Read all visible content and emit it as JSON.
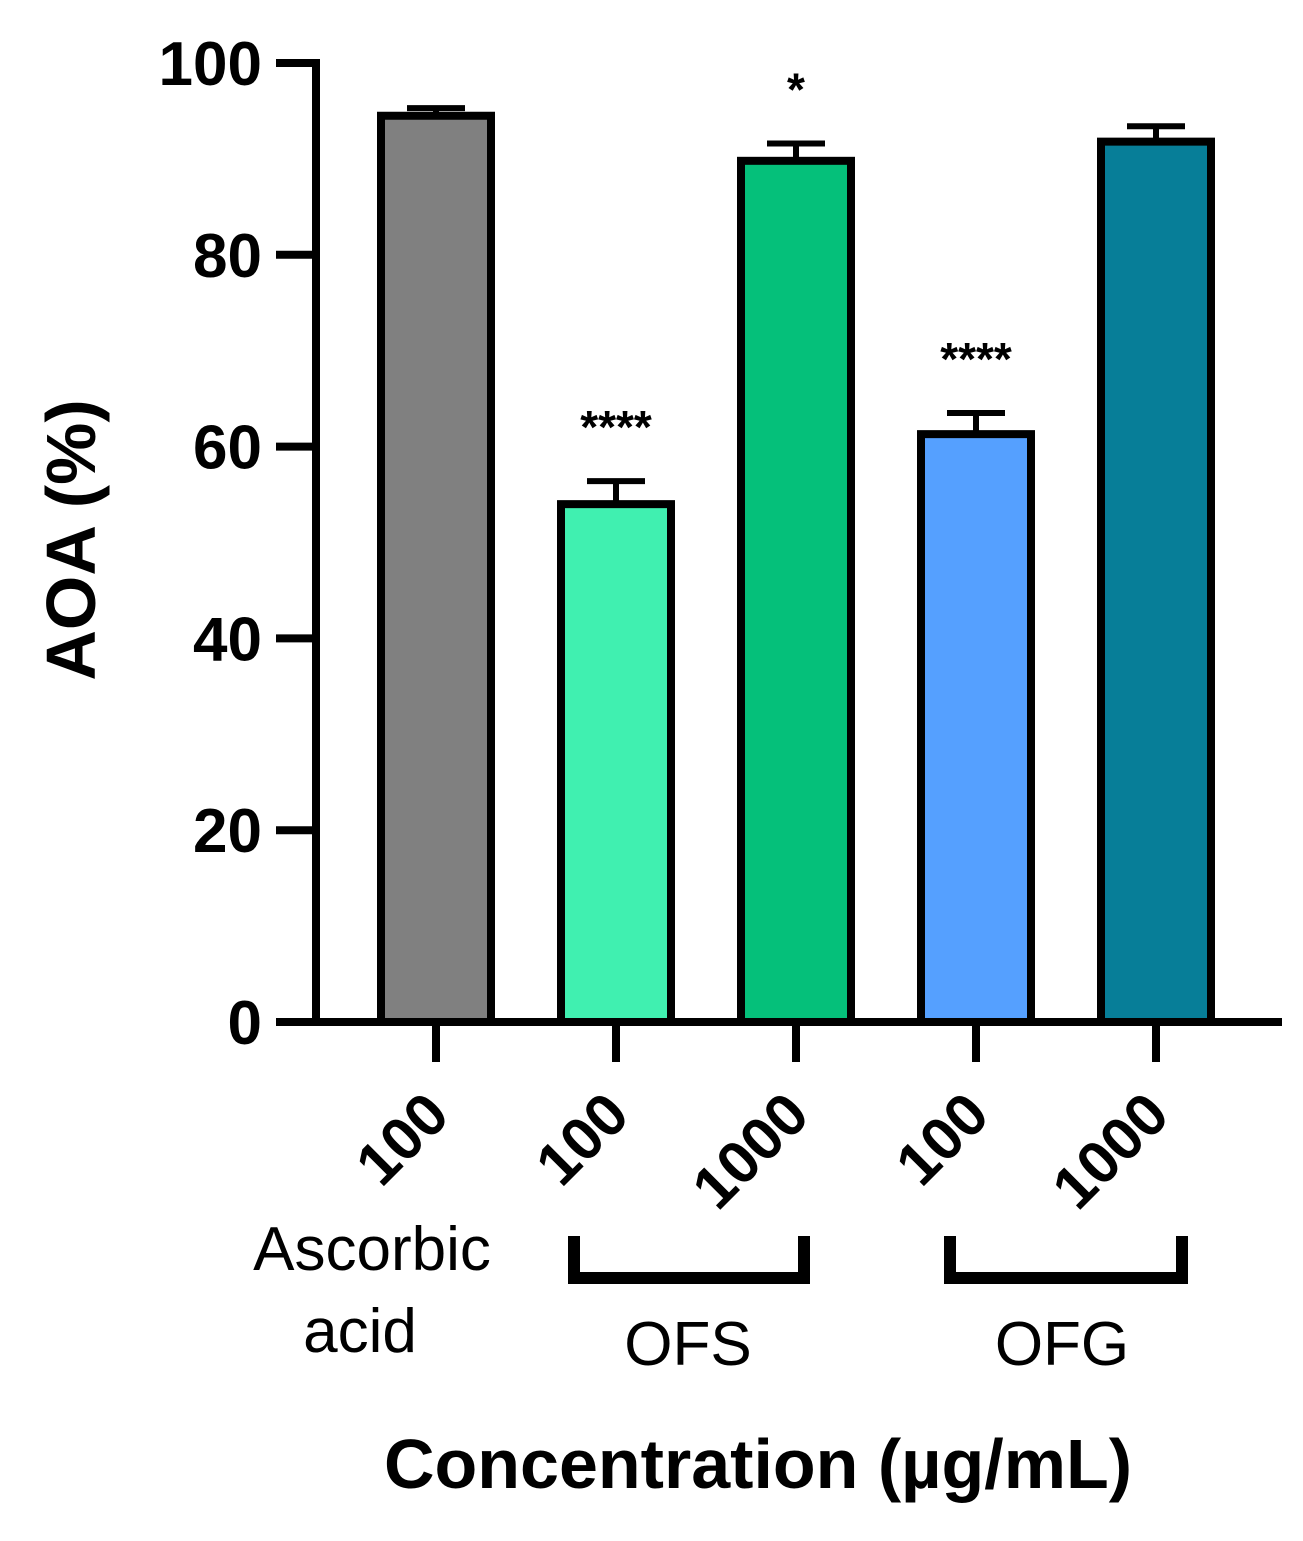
{
  "chart_data": {
    "type": "bar",
    "title": "",
    "ylabel": "AOA (%)",
    "xlabel": "Concentration (µg/mL)",
    "ylim": [
      0,
      100
    ],
    "yticks": [
      "0",
      "20",
      "40",
      "60",
      "80",
      "100"
    ],
    "categories": [
      "100",
      "100",
      "1000",
      "100",
      "1000"
    ],
    "values": [
      94.5,
      54,
      89.8,
      61.3,
      91.8
    ],
    "errors": [
      0.8,
      2.4,
      1.8,
      2.2,
      1.6
    ],
    "significance": [
      "",
      "****",
      "*",
      "****",
      ""
    ],
    "colors": [
      "#808080",
      "#40F0B0",
      "#05C07A",
      "#55A0FF",
      "#077E98"
    ],
    "groups": [
      {
        "label_lines": [
          "Ascorbic",
          "acid"
        ],
        "bracket": false
      },
      {
        "label_lines": [
          "OFS"
        ],
        "bracket": true
      },
      {
        "label_lines": [
          "OFG"
        ],
        "bracket": true
      }
    ]
  }
}
